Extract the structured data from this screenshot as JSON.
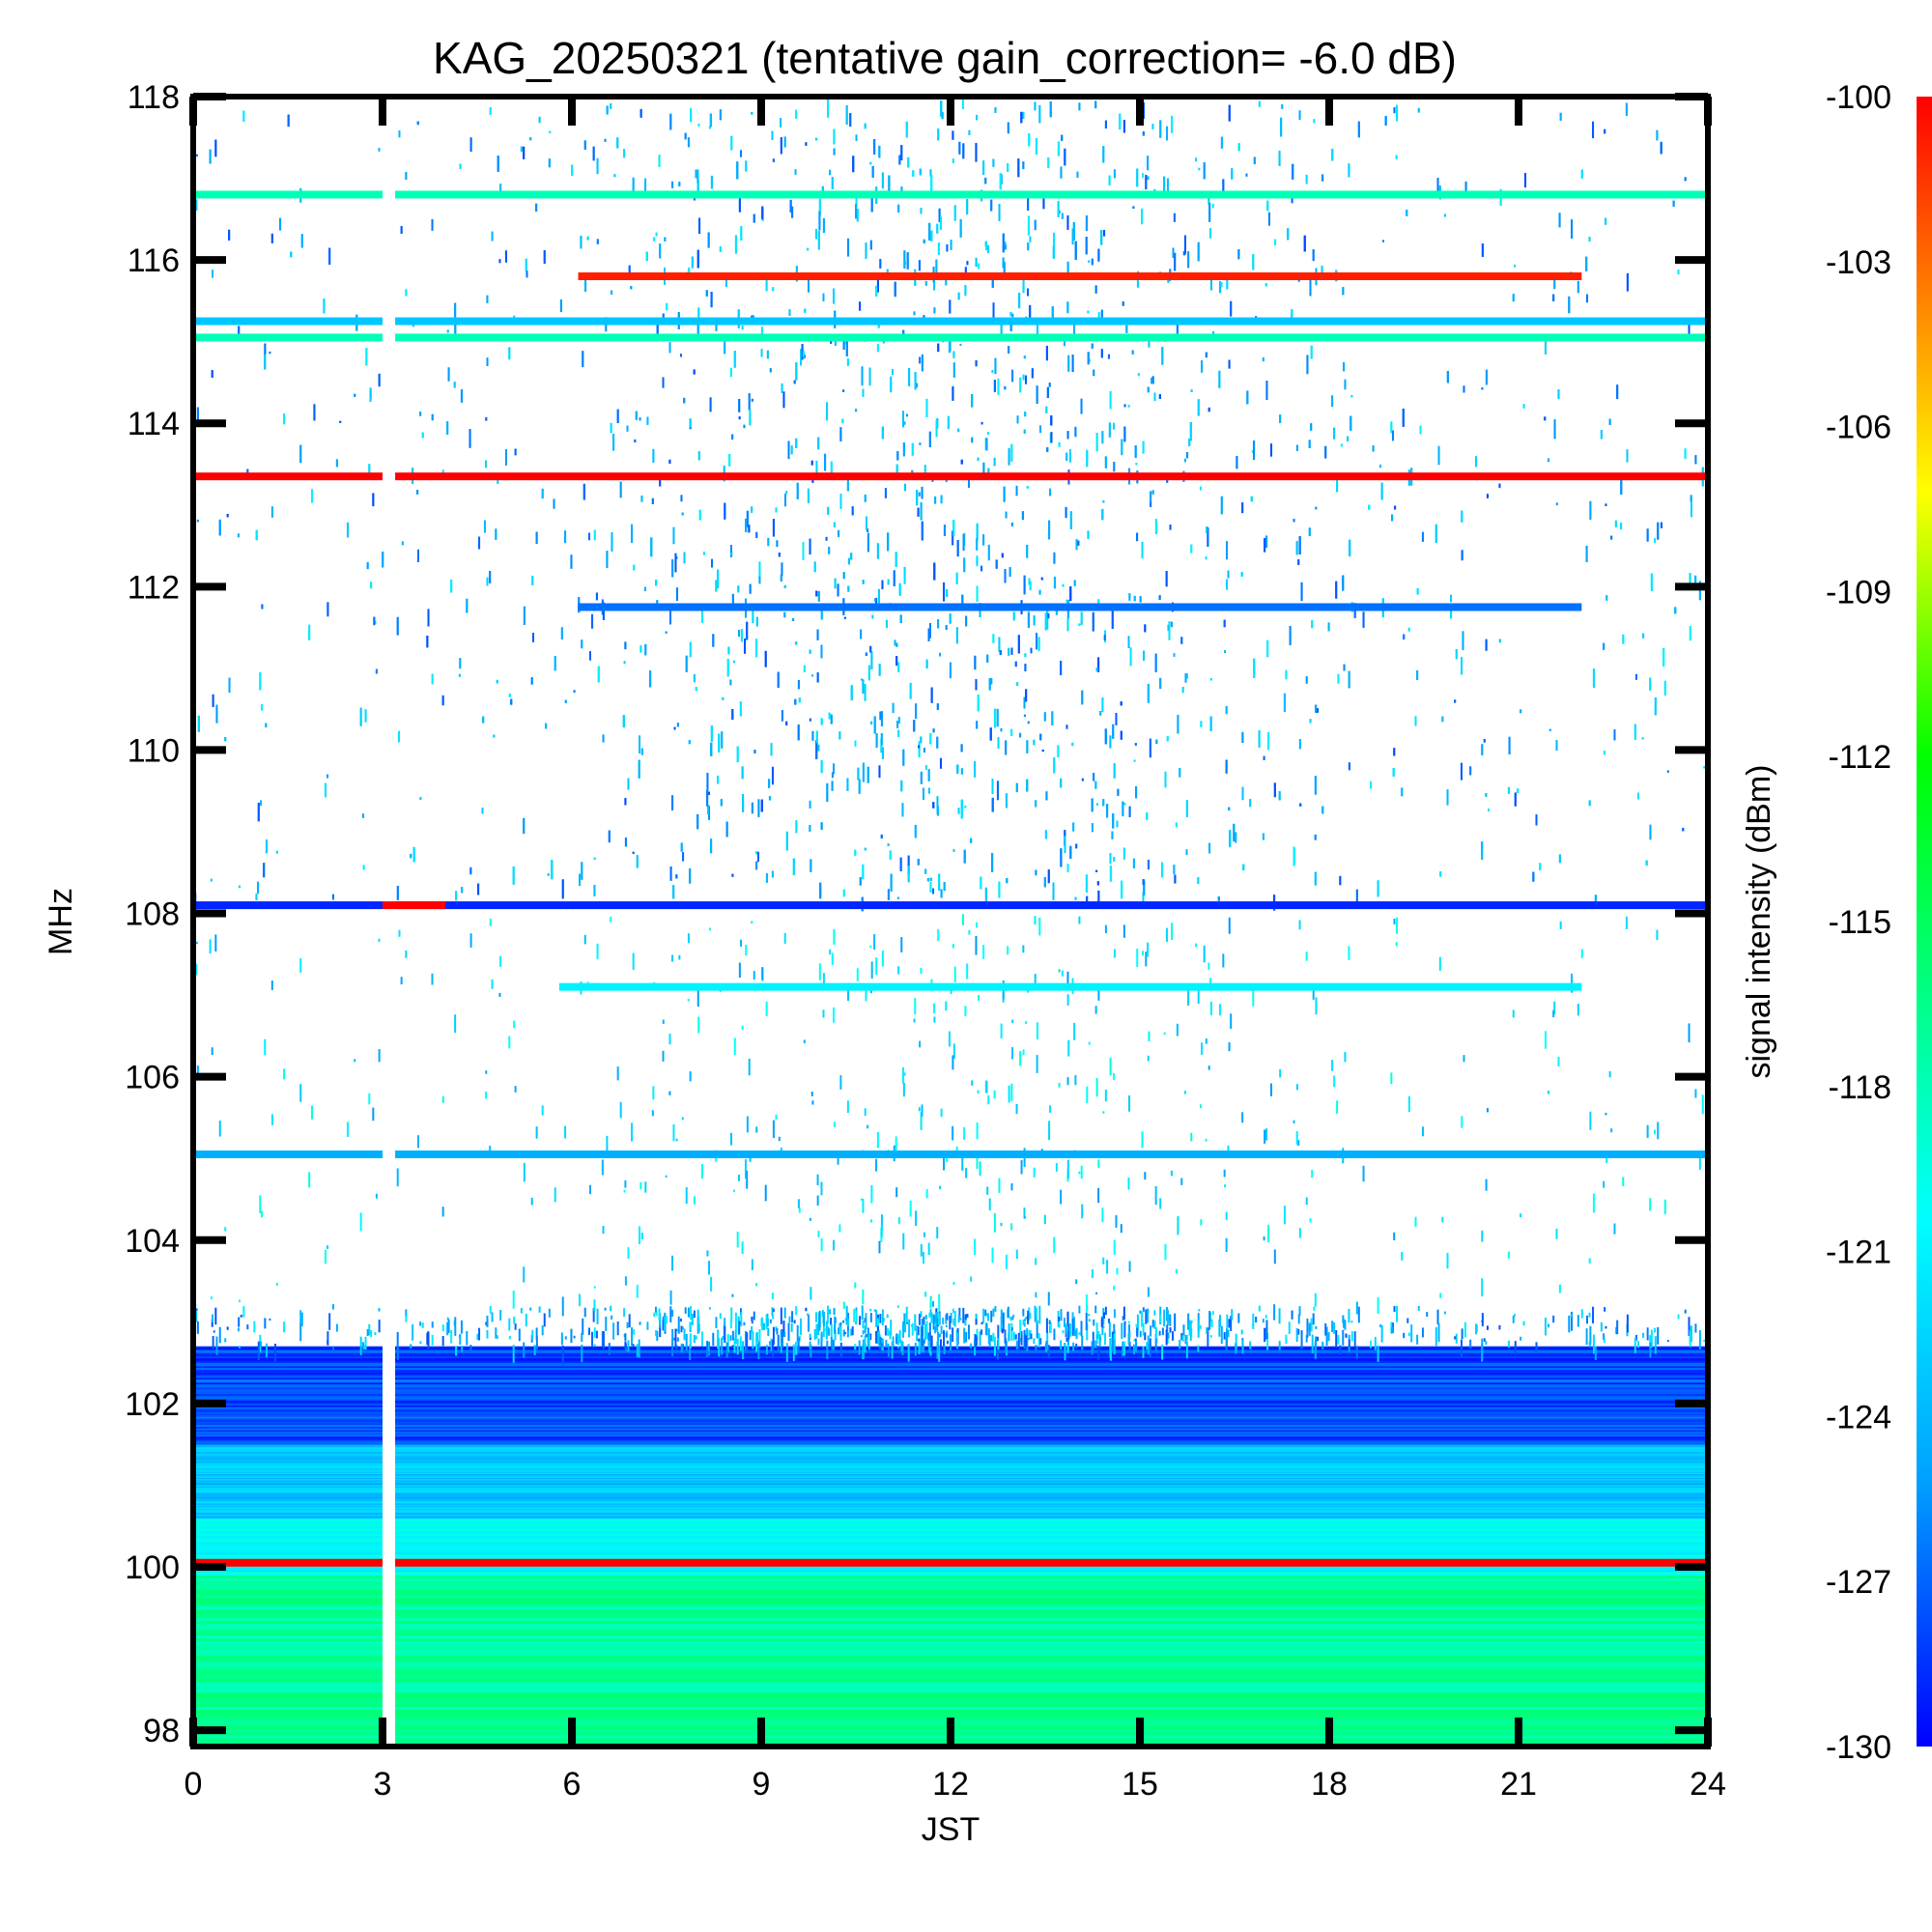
{
  "chart_data": {
    "type": "heatmap",
    "title": "KAG_20250321 (tentative gain_correction= -6.0 dB)",
    "xlabel": "JST",
    "ylabel": "MHz",
    "colorbar_label": "signal intensity (dBm)",
    "xlim": [
      0,
      24
    ],
    "ylim": [
      97.8,
      118.0
    ],
    "x_ticks": [
      "0",
      "3",
      "6",
      "9",
      "12",
      "15",
      "18",
      "21",
      "24"
    ],
    "y_ticks": [
      "98",
      "100",
      "102",
      "104",
      "106",
      "108",
      "110",
      "112",
      "114",
      "116",
      "118"
    ],
    "colorbar_range": [
      -130,
      -100
    ],
    "colorbar_ticks": [
      "-100",
      "-103",
      "-106",
      "-109",
      "-112",
      "-115",
      "-118",
      "-121",
      "-124",
      "-127",
      "-130"
    ],
    "colormap": [
      "#0000ff",
      "#00a0ff",
      "#00ffff",
      "#00ff80",
      "#00ff00",
      "#ffff00",
      "#ff8000",
      "#ff0000"
    ],
    "data_gap": {
      "start": 3.0,
      "end": 3.2
    },
    "continuous_bands": [
      {
        "freq": 116.8,
        "start": 0,
        "end": 24,
        "dbm": -119
      },
      {
        "freq": 115.8,
        "start": 6.1,
        "end": 22.0,
        "dbm": -101
      },
      {
        "freq": 115.25,
        "start": 0,
        "end": 24,
        "dbm": -124
      },
      {
        "freq": 115.05,
        "start": 0,
        "end": 24,
        "dbm": -119
      },
      {
        "freq": 113.35,
        "start": 0,
        "end": 24,
        "dbm": -100
      },
      {
        "freq": 111.75,
        "start": 6.1,
        "end": 22.0,
        "dbm": -127
      },
      {
        "freq": 108.1,
        "start": 0,
        "end": 24,
        "dbm": -129
      },
      {
        "freq": 108.1,
        "start": 3.0,
        "end": 4.0,
        "dbm": -100
      },
      {
        "freq": 107.1,
        "start": 5.8,
        "end": 22.0,
        "dbm": -122
      },
      {
        "freq": 105.05,
        "start": 0,
        "end": 24,
        "dbm": -125
      },
      {
        "freq": 100.05,
        "start": 0,
        "end": 24,
        "dbm": -100
      }
    ],
    "noise_floor": [
      {
        "freq_min": 97.8,
        "freq_max": 99.9,
        "dbm": -118
      },
      {
        "freq_min": 99.9,
        "freq_max": 100.6,
        "dbm": -121
      },
      {
        "freq_min": 100.6,
        "freq_max": 101.5,
        "dbm": -124
      },
      {
        "freq_min": 101.5,
        "freq_max": 102.7,
        "dbm": -128
      }
    ]
  }
}
